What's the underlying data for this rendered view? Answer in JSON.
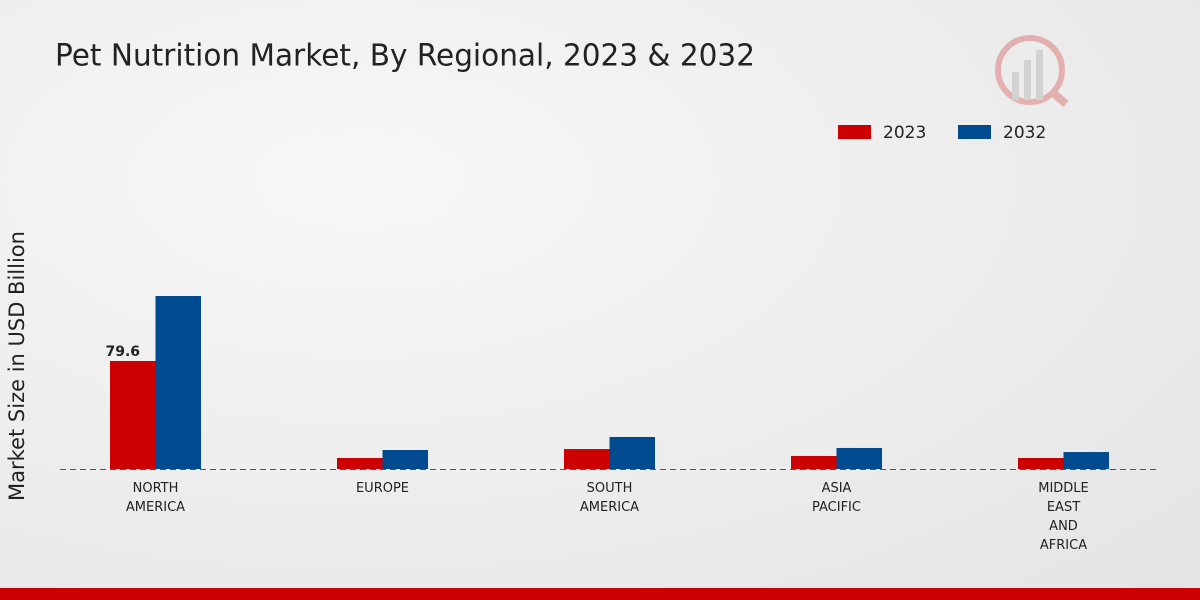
{
  "chart_data": {
    "type": "bar",
    "title": "Pet Nutrition Market, By Regional, 2023 & 2032",
    "ylabel": "Market Size in USD Billion",
    "categories": [
      "NORTH AMERICA",
      "EUROPE",
      "SOUTH AMERICA",
      "ASIA PACIFIC",
      "MIDDLE EAST AND AFRICA"
    ],
    "series": [
      {
        "name": "2023",
        "color": "#cc0000",
        "values": [
          79.6,
          8.1,
          14.7,
          9.6,
          8.1
        ]
      },
      {
        "name": "2032",
        "color": "#004a8f",
        "values": [
          127.5,
          14.0,
          23.6,
          15.5,
          12.5
        ]
      }
    ],
    "legend": "top-right"
  }
}
